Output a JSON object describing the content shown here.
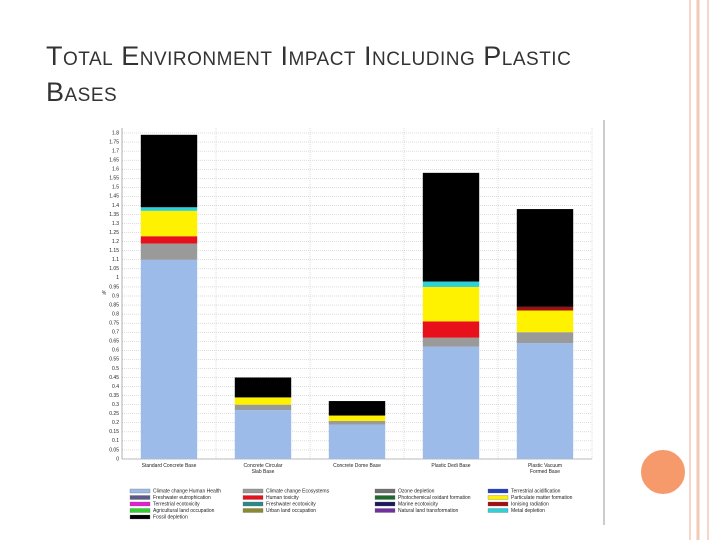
{
  "chart_data": {
    "type": "bar",
    "stacked": true,
    "title": "Total Environment Impact Including Plastic Bases",
    "ylabel": "%",
    "categories": [
      "Standard Concrete Base",
      "Concrete Circular Slab Base",
      "Concrete Dome Base",
      "Plastic Dedi Base",
      "Plastic Vacuum Formed Base"
    ],
    "ylim": [
      0,
      1.8
    ],
    "yticks": [
      0,
      0.05,
      0.1,
      0.15,
      0.2,
      0.25,
      0.3,
      0.35,
      0.4,
      0.45,
      0.5,
      0.55,
      0.6,
      0.65,
      0.7,
      0.75,
      0.8,
      0.85,
      0.9,
      0.95,
      1,
      1.05,
      1.1,
      1.15,
      1.2,
      1.25,
      1.3,
      1.35,
      1.4,
      1.45,
      1.5,
      1.55,
      1.6,
      1.65,
      1.7,
      1.75,
      1.8
    ],
    "grid": true,
    "legend": "bottom",
    "series": [
      {
        "name": "Climate change Human Health",
        "color": "#9dbbe8",
        "values": [
          1.1,
          0.27,
          0.19,
          0.62,
          0.64
        ]
      },
      {
        "name": "Climate change Ecosystems",
        "color": "#9a9a9a",
        "values": [
          0.09,
          0.03,
          0.02,
          0.05,
          0.06
        ]
      },
      {
        "name": "Ozone depletion",
        "color": "#707070",
        "values": [
          0,
          0,
          0,
          0,
          0
        ]
      },
      {
        "name": "Terrestrial acidification",
        "color": "#1f3fbf",
        "values": [
          0,
          0,
          0,
          0,
          0
        ]
      },
      {
        "name": "Freshwater eutrophication",
        "color": "#5a5a8a",
        "values": [
          0,
          0,
          0,
          0,
          0
        ]
      },
      {
        "name": "Human toxicity",
        "color": "#e8111b",
        "values": [
          0.04,
          0,
          0,
          0.09,
          0
        ]
      },
      {
        "name": "Photochemical oxidant formation",
        "color": "#1d6b2a",
        "values": [
          0,
          0,
          0,
          0,
          0
        ]
      },
      {
        "name": "Particulate matter formation",
        "color": "#fff200",
        "values": [
          0.14,
          0.04,
          0.03,
          0.19,
          0.12
        ]
      },
      {
        "name": "Terrestrial ecotoxicity",
        "color": "#e020d0",
        "values": [
          0,
          0,
          0,
          0,
          0
        ]
      },
      {
        "name": "Freshwater ecotoxicity",
        "color": "#2a8a8a",
        "values": [
          0,
          0,
          0,
          0,
          0
        ]
      },
      {
        "name": "Marine ecotoxicity",
        "color": "#1a1a5a",
        "values": [
          0,
          0,
          0,
          0,
          0
        ]
      },
      {
        "name": "Ionising radiation",
        "color": "#a01010",
        "values": [
          0,
          0,
          0,
          0,
          0.02
        ]
      },
      {
        "name": "Agricultural land occupation",
        "color": "#30d030",
        "values": [
          0,
          0,
          0,
          0,
          0
        ]
      },
      {
        "name": "Urban land occupation",
        "color": "#8a8a30",
        "values": [
          0,
          0,
          0,
          0,
          0
        ]
      },
      {
        "name": "Natural land transformation",
        "color": "#7030a0",
        "values": [
          0,
          0,
          0,
          0,
          0
        ]
      },
      {
        "name": "Metal depletion",
        "color": "#30d0d8",
        "values": [
          0.02,
          0,
          0,
          0.03,
          0
        ]
      },
      {
        "name": "Fossil depletion",
        "color": "#000000",
        "values": [
          0.4,
          0.11,
          0.08,
          0.6,
          0.54
        ]
      }
    ]
  }
}
